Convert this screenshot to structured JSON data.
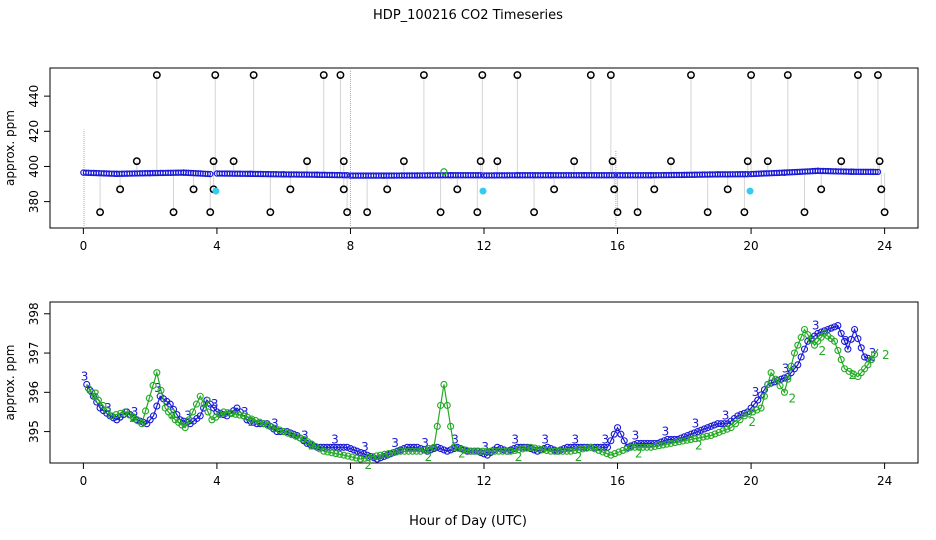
{
  "title": "HDP_100216  CO2 Timeseries",
  "xaxis_title": "Hour of Day (UTC)",
  "colors": {
    "axis": "#000000",
    "blue": "#1a1ad6",
    "green": "#22aa22",
    "cyan": "#33ccee",
    "black_marker": "#000000",
    "gray_line": "#aaaaaa"
  },
  "chart_data": [
    {
      "type": "scatter",
      "name": "top-panel",
      "ylabel": "approx. ppm",
      "xlim": [
        -1,
        25
      ],
      "ylim": [
        365,
        456
      ],
      "xticks": [
        0,
        4,
        8,
        12,
        16,
        20,
        24
      ],
      "xtick_labels": [
        "0",
        "4",
        "8",
        "12",
        "16",
        "20",
        "24"
      ],
      "yticks": [
        380,
        400,
        420,
        440
      ],
      "ytick_labels": [
        "380",
        "400",
        "420",
        "440"
      ],
      "baseline_segments": [
        {
          "x": [
            0.0,
            1.0,
            2.0,
            3.0,
            3.8
          ],
          "y": [
            396.5,
            395.8,
            396.2,
            396.5,
            395.7
          ]
        },
        {
          "x": [
            4.0,
            5.0,
            6.0,
            7.0,
            7.9
          ],
          "y": [
            396.0,
            395.8,
            395.5,
            395.3,
            395.0
          ]
        },
        {
          "x": [
            8.0,
            9.0,
            10.0,
            11.0,
            11.9
          ],
          "y": [
            394.8,
            394.8,
            394.9,
            395.0,
            395.0
          ]
        },
        {
          "x": [
            12.0,
            13.0,
            14.0,
            15.0,
            15.9
          ],
          "y": [
            394.9,
            395.0,
            395.0,
            395.0,
            395.0
          ]
        },
        {
          "x": [
            16.0,
            17.0,
            18.0,
            19.0,
            19.9
          ],
          "y": [
            395.0,
            395.0,
            395.2,
            395.5,
            395.6
          ]
        },
        {
          "x": [
            20.0,
            21.0,
            22.0,
            23.0,
            23.8
          ],
          "y": [
            395.7,
            396.5,
            397.5,
            397.0,
            396.9
          ]
        }
      ],
      "outlier_markers": {
        "x": [
          0.5,
          1.1,
          1.6,
          2.2,
          2.7,
          3.3,
          3.8,
          3.9,
          3.9,
          3.95,
          4.5,
          5.1,
          5.6,
          6.2,
          6.7,
          7.2,
          7.7,
          7.8,
          7.8,
          7.9,
          8.5,
          9.1,
          9.6,
          10.2,
          10.7,
          11.2,
          11.8,
          11.9,
          11.95,
          12.4,
          13.0,
          13.5,
          14.1,
          14.7,
          15.2,
          15.8,
          15.85,
          15.9,
          16.0,
          16.6,
          17.1,
          17.6,
          18.2,
          18.7,
          19.3,
          19.8,
          19.9,
          20.0,
          20.5,
          21.1,
          21.6,
          22.1,
          22.7,
          23.2,
          23.8,
          23.85,
          23.9,
          24.0
        ],
        "y": [
          374,
          387,
          403,
          452,
          374,
          387,
          374,
          403,
          387,
          452,
          403,
          452,
          374,
          387,
          403,
          452,
          452,
          403,
          387,
          374,
          374,
          387,
          403,
          452,
          374,
          387,
          374,
          403,
          452,
          403,
          452,
          374,
          387,
          403,
          452,
          452,
          403,
          387,
          374,
          374,
          387,
          403,
          452,
          374,
          387,
          374,
          403,
          452,
          403,
          452,
          374,
          387,
          403,
          452,
          452,
          403,
          387,
          374
        ]
      },
      "cyan_markers": {
        "x": [
          3.97,
          11.97,
          19.97
        ],
        "y": [
          386,
          386,
          386
        ]
      },
      "green_markers": {
        "x": [
          10.8
        ],
        "y": [
          397
        ]
      },
      "spike_lines": {
        "x": [
          0.02,
          8.0,
          15.95
        ],
        "y": [
          421,
          455,
          409
        ]
      }
    },
    {
      "type": "line",
      "name": "bottom-panel",
      "ylabel": "approx. ppm",
      "xlim": [
        -1,
        25
      ],
      "ylim": [
        394.2,
        398.3
      ],
      "xticks": [
        0,
        4,
        8,
        12,
        16,
        20,
        24
      ],
      "xtick_labels": [
        "0",
        "4",
        "8",
        "12",
        "16",
        "20",
        "24"
      ],
      "yticks": [
        395,
        396,
        397,
        398
      ],
      "ytick_labels": [
        "395",
        "396",
        "397",
        "398"
      ],
      "series": [
        {
          "name": "3",
          "color": "blue",
          "x": [
            0.1,
            0.3,
            0.5,
            0.8,
            1.0,
            1.3,
            1.6,
            1.9,
            2.1,
            2.3,
            2.6,
            2.9,
            3.2,
            3.5,
            3.7,
            4.0,
            4.3,
            4.6,
            4.9,
            5.2,
            5.5,
            5.8,
            6.1,
            6.4,
            6.7,
            7.0,
            7.3,
            7.6,
            7.9,
            8.2,
            8.5,
            8.8,
            9.1,
            9.4,
            9.7,
            10.0,
            10.3,
            10.6,
            10.9,
            11.2,
            11.5,
            11.8,
            12.1,
            12.4,
            12.7,
            13.0,
            13.3,
            13.6,
            13.9,
            14.2,
            14.5,
            14.8,
            15.1,
            15.4,
            15.7,
            16.0,
            16.3,
            16.6,
            16.9,
            17.2,
            17.5,
            17.8,
            18.1,
            18.4,
            18.7,
            19.0,
            19.3,
            19.6,
            19.9,
            20.2,
            20.5,
            20.8,
            21.1,
            21.4,
            21.7,
            22.0,
            22.3,
            22.6,
            22.9,
            23.1,
            23.4,
            23.7
          ],
          "y": [
            396.2,
            395.9,
            395.6,
            395.4,
            395.3,
            395.5,
            395.3,
            395.2,
            395.4,
            395.9,
            395.7,
            395.3,
            395.2,
            395.4,
            395.8,
            395.5,
            395.4,
            395.6,
            395.3,
            395.2,
            395.2,
            395.0,
            395.0,
            394.9,
            394.7,
            394.6,
            394.6,
            394.6,
            394.6,
            394.5,
            394.4,
            394.3,
            394.4,
            394.5,
            394.6,
            394.6,
            394.5,
            394.6,
            394.5,
            394.6,
            394.5,
            394.5,
            394.4,
            394.6,
            394.5,
            394.6,
            394.6,
            394.5,
            394.6,
            394.5,
            394.6,
            394.6,
            394.6,
            394.6,
            394.6,
            395.1,
            394.6,
            394.7,
            394.7,
            394.7,
            394.8,
            394.8,
            394.9,
            395.0,
            395.1,
            395.2,
            395.2,
            395.4,
            395.5,
            395.8,
            396.2,
            396.3,
            396.4,
            396.7,
            397.3,
            397.5,
            397.6,
            397.7,
            397.1,
            397.6,
            396.9,
            396.8
          ]
        },
        {
          "name": "2",
          "color": "green",
          "x": [
            0.15,
            0.45,
            0.85,
            1.25,
            1.75,
            2.2,
            2.45,
            2.75,
            3.05,
            3.5,
            3.85,
            4.2,
            4.8,
            5.4,
            6.0,
            6.6,
            7.2,
            7.8,
            8.3,
            8.9,
            9.5,
            10.1,
            10.5,
            10.8,
            11.1,
            11.6,
            12.2,
            12.8,
            13.4,
            14.0,
            14.6,
            15.2,
            15.8,
            16.4,
            17.0,
            17.6,
            18.2,
            18.8,
            19.4,
            19.8,
            20.3,
            20.6,
            21.0,
            21.3,
            21.6,
            21.9,
            22.2,
            22.5,
            22.8,
            23.2,
            23.5,
            23.8
          ],
          "y": [
            396.1,
            395.8,
            395.4,
            395.5,
            395.2,
            396.5,
            395.6,
            395.3,
            395.1,
            395.9,
            395.3,
            395.5,
            395.4,
            395.2,
            395.0,
            394.8,
            394.5,
            394.4,
            394.3,
            394.4,
            394.5,
            394.5,
            394.6,
            396.2,
            394.6,
            394.5,
            394.5,
            394.5,
            394.6,
            394.5,
            394.5,
            394.6,
            394.4,
            394.6,
            394.6,
            394.7,
            394.8,
            394.9,
            395.1,
            395.4,
            395.6,
            396.5,
            396.0,
            397.0,
            397.6,
            397.2,
            397.5,
            397.3,
            396.6,
            396.4,
            396.7,
            397.1
          ]
        }
      ]
    }
  ]
}
